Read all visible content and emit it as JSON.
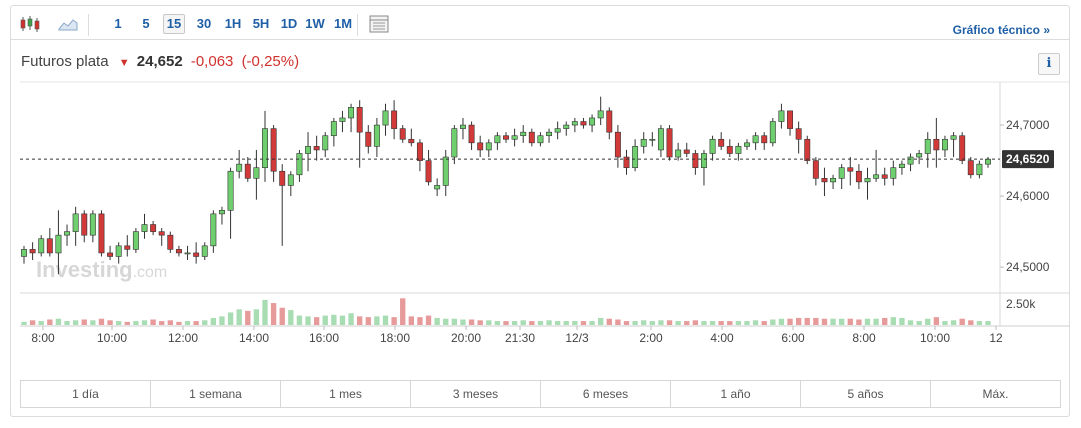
{
  "toolbar": {
    "intervals": [
      "1",
      "5",
      "15",
      "30",
      "1H",
      "5H",
      "1D",
      "1W",
      "1M"
    ],
    "active_interval": "15",
    "icons": [
      "candlestick-icon",
      "area-chart-icon",
      "table-icon"
    ],
    "tech_link": "Gráfico técnico »"
  },
  "header": {
    "name": "Futuros plata",
    "price": "24,652",
    "change": "-0,063",
    "change_pct": "(-0,25%)",
    "direction_icon": "down-arrow-icon",
    "info_label": "i"
  },
  "watermark": {
    "brand": "Investing",
    "suffix": ".com"
  },
  "colors": {
    "up": "#3aa54a",
    "down": "#d0312d",
    "up_fill": "#6fcf6f",
    "down_fill": "#d23a3a",
    "vol_up": "#a8dcb3",
    "vol_down": "#e79a9a",
    "link": "#1f5fa6"
  },
  "chart_data": {
    "type": "candlestick",
    "y_ticks": [
      "24,7000",
      "24,6000",
      "24,5000"
    ],
    "y_tick_values": [
      24.7,
      24.6,
      24.5
    ],
    "ylim": [
      24.465,
      24.755
    ],
    "current_price_label": "24,6520",
    "current_price": 24.652,
    "volume_tick": "2.50k",
    "x_ticks": [
      "8:00",
      "10:00",
      "12:00",
      "14:00",
      "16:00",
      "18:00",
      "20:00",
      "21:30",
      "12/3",
      "2:00",
      "4:00",
      "6:00",
      "8:00",
      "10:00",
      "12"
    ],
    "candles": [
      [
        24.515,
        24.53,
        24.505,
        24.525
      ],
      [
        24.525,
        24.535,
        24.51,
        24.52
      ],
      [
        24.52,
        24.545,
        24.515,
        24.54
      ],
      [
        24.54,
        24.555,
        24.515,
        24.52
      ],
      [
        24.52,
        24.58,
        24.49,
        24.545
      ],
      [
        24.545,
        24.56,
        24.53,
        24.55
      ],
      [
        24.55,
        24.585,
        24.53,
        24.575
      ],
      [
        24.575,
        24.58,
        24.535,
        24.545
      ],
      [
        24.545,
        24.58,
        24.535,
        24.575
      ],
      [
        24.575,
        24.58,
        24.515,
        24.52
      ],
      [
        24.52,
        24.53,
        24.51,
        24.515
      ],
      [
        24.515,
        24.535,
        24.505,
        24.53
      ],
      [
        24.53,
        24.545,
        24.515,
        24.525
      ],
      [
        24.525,
        24.555,
        24.52,
        24.55
      ],
      [
        24.55,
        24.575,
        24.54,
        24.56
      ],
      [
        24.56,
        24.565,
        24.545,
        24.55
      ],
      [
        24.55,
        24.555,
        24.53,
        24.545
      ],
      [
        24.545,
        24.55,
        24.52,
        24.525
      ],
      [
        24.525,
        24.53,
        24.515,
        24.52
      ],
      [
        24.52,
        24.53,
        24.51,
        24.52
      ],
      [
        24.52,
        24.535,
        24.505,
        24.515
      ],
      [
        24.515,
        24.535,
        24.51,
        24.53
      ],
      [
        24.53,
        24.58,
        24.52,
        24.575
      ],
      [
        24.575,
        24.585,
        24.56,
        24.58
      ],
      [
        24.58,
        24.64,
        24.54,
        24.635
      ],
      [
        24.635,
        24.665,
        24.625,
        24.645
      ],
      [
        24.645,
        24.655,
        24.62,
        24.625
      ],
      [
        24.625,
        24.665,
        24.595,
        24.64
      ],
      [
        24.64,
        24.72,
        24.62,
        24.695
      ],
      [
        24.695,
        24.7,
        24.62,
        24.635
      ],
      [
        24.635,
        24.645,
        24.53,
        24.615
      ],
      [
        24.615,
        24.635,
        24.6,
        24.63
      ],
      [
        24.63,
        24.665,
        24.62,
        24.66
      ],
      [
        24.66,
        24.69,
        24.635,
        24.67
      ],
      [
        24.67,
        24.685,
        24.65,
        24.665
      ],
      [
        24.665,
        24.69,
        24.655,
        24.685
      ],
      [
        24.685,
        24.71,
        24.67,
        24.705
      ],
      [
        24.705,
        24.72,
        24.69,
        24.71
      ],
      [
        24.71,
        24.73,
        24.69,
        24.725
      ],
      [
        24.725,
        24.735,
        24.64,
        24.69
      ],
      [
        24.69,
        24.7,
        24.66,
        24.67
      ],
      [
        24.67,
        24.71,
        24.655,
        24.7
      ],
      [
        24.7,
        24.73,
        24.685,
        24.72
      ],
      [
        24.72,
        24.735,
        24.68,
        24.695
      ],
      [
        24.695,
        24.7,
        24.675,
        24.68
      ],
      [
        24.68,
        24.695,
        24.67,
        24.675
      ],
      [
        24.675,
        24.68,
        24.635,
        24.65
      ],
      [
        24.65,
        24.665,
        24.615,
        24.62
      ],
      [
        24.61,
        24.625,
        24.6,
        24.615
      ],
      [
        24.615,
        24.665,
        24.6,
        24.655
      ],
      [
        24.655,
        24.7,
        24.645,
        24.695
      ],
      [
        24.695,
        24.71,
        24.68,
        24.7
      ],
      [
        24.7,
        24.705,
        24.665,
        24.675
      ],
      [
        24.675,
        24.685,
        24.655,
        24.665
      ],
      [
        24.665,
        24.68,
        24.655,
        24.675
      ],
      [
        24.675,
        24.69,
        24.665,
        24.685
      ],
      [
        24.685,
        24.69,
        24.675,
        24.68
      ],
      [
        24.68,
        24.695,
        24.67,
        24.685
      ],
      [
        24.685,
        24.7,
        24.675,
        24.69
      ],
      [
        24.69,
        24.695,
        24.67,
        24.675
      ],
      [
        24.675,
        24.69,
        24.67,
        24.685
      ],
      [
        24.685,
        24.695,
        24.675,
        24.69
      ],
      [
        24.69,
        24.705,
        24.68,
        24.695
      ],
      [
        24.695,
        24.705,
        24.685,
        24.7
      ],
      [
        24.7,
        24.71,
        24.69,
        24.705
      ],
      [
        24.705,
        24.71,
        24.695,
        24.7
      ],
      [
        24.7,
        24.715,
        24.69,
        24.71
      ],
      [
        24.71,
        24.74,
        24.7,
        24.72
      ],
      [
        24.72,
        24.725,
        24.68,
        24.69
      ],
      [
        24.69,
        24.7,
        24.64,
        24.655
      ],
      [
        24.655,
        24.665,
        24.63,
        24.64
      ],
      [
        24.64,
        24.68,
        24.635,
        24.67
      ],
      [
        24.67,
        24.69,
        24.66,
        24.68
      ],
      [
        24.68,
        24.69,
        24.67,
        24.68
      ],
      [
        24.665,
        24.7,
        24.655,
        24.695
      ],
      [
        24.695,
        24.7,
        24.65,
        24.655
      ],
      [
        24.655,
        24.675,
        24.65,
        24.665
      ],
      [
        24.665,
        24.675,
        24.655,
        24.66
      ],
      [
        24.66,
        24.665,
        24.63,
        24.64
      ],
      [
        24.64,
        24.665,
        24.615,
        24.66
      ],
      [
        24.66,
        24.685,
        24.65,
        24.68
      ],
      [
        24.68,
        24.69,
        24.665,
        24.67
      ],
      [
        24.67,
        24.68,
        24.655,
        24.66
      ],
      [
        24.66,
        24.675,
        24.65,
        24.67
      ],
      [
        24.67,
        24.68,
        24.665,
        24.675
      ],
      [
        24.675,
        24.69,
        24.665,
        24.685
      ],
      [
        24.685,
        24.69,
        24.665,
        24.675
      ],
      [
        24.675,
        24.71,
        24.67,
        24.705
      ],
      [
        24.705,
        24.73,
        24.695,
        24.72
      ],
      [
        24.72,
        24.72,
        24.685,
        24.695
      ],
      [
        24.695,
        24.705,
        24.66,
        24.68
      ],
      [
        24.68,
        24.685,
        24.645,
        24.65
      ],
      [
        24.65,
        24.655,
        24.615,
        24.625
      ],
      [
        24.625,
        24.64,
        24.6,
        24.62
      ],
      [
        24.62,
        24.63,
        24.61,
        24.625
      ],
      [
        24.625,
        24.645,
        24.61,
        24.64
      ],
      [
        24.64,
        24.655,
        24.615,
        24.635
      ],
      [
        24.635,
        24.645,
        24.61,
        24.62
      ],
      [
        24.62,
        24.64,
        24.595,
        24.625
      ],
      [
        24.625,
        24.665,
        24.62,
        24.63
      ],
      [
        24.63,
        24.64,
        24.615,
        24.625
      ],
      [
        24.625,
        24.65,
        24.615,
        24.64
      ],
      [
        24.64,
        24.65,
        24.63,
        24.645
      ],
      [
        24.645,
        24.66,
        24.635,
        24.655
      ],
      [
        24.655,
        24.665,
        24.645,
        24.66
      ],
      [
        24.66,
        24.69,
        24.64,
        24.68
      ],
      [
        24.68,
        24.71,
        24.64,
        24.665
      ],
      [
        24.665,
        24.685,
        24.655,
        24.68
      ],
      [
        24.68,
        24.69,
        24.655,
        24.685
      ],
      [
        24.685,
        24.69,
        24.645,
        24.65
      ],
      [
        24.65,
        24.655,
        24.625,
        24.63
      ],
      [
        24.63,
        24.65,
        24.625,
        24.645
      ],
      [
        24.645,
        24.655,
        24.64,
        24.652
      ]
    ],
    "volumes": [
      0.4,
      0.6,
      0.5,
      0.7,
      0.8,
      0.5,
      0.6,
      0.7,
      0.6,
      0.8,
      0.6,
      0.5,
      0.4,
      0.5,
      0.6,
      0.7,
      0.5,
      0.6,
      0.4,
      0.5,
      0.5,
      0.6,
      0.9,
      1.1,
      1.6,
      2.0,
      1.8,
      2.0,
      3.2,
      2.8,
      2.2,
      1.9,
      1.2,
      1.1,
      1.0,
      1.2,
      1.3,
      1.2,
      1.5,
      1.1,
      1.0,
      1.1,
      1.2,
      1.0,
      3.4,
      1.1,
      1.0,
      1.2,
      0.9,
      0.8,
      0.8,
      0.7,
      0.7,
      0.6,
      0.6,
      0.5,
      0.5,
      0.5,
      0.6,
      0.5,
      0.5,
      0.6,
      0.5,
      0.5,
      0.5,
      0.5,
      0.5,
      0.9,
      0.8,
      0.7,
      0.5,
      0.5,
      0.6,
      0.5,
      0.6,
      0.6,
      0.5,
      0.5,
      0.6,
      0.5,
      0.5,
      0.5,
      0.5,
      0.5,
      0.5,
      0.6,
      0.5,
      0.7,
      0.8,
      0.8,
      0.9,
      0.9,
      0.9,
      0.8,
      0.8,
      0.8,
      0.8,
      0.7,
      0.8,
      0.8,
      0.9,
      1.0,
      0.9,
      0.6,
      0.5,
      0.8,
      1.0,
      0.5,
      0.6,
      0.8,
      0.6,
      0.5,
      0.5
    ]
  },
  "ranges": [
    "1 día",
    "1 semana",
    "1 mes",
    "3 meses",
    "6 meses",
    "1 año",
    "5 años",
    "Máx."
  ]
}
